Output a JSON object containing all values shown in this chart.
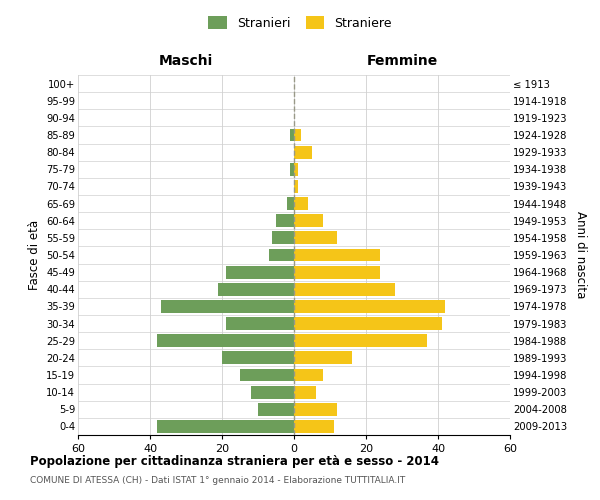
{
  "age_groups_bottom_to_top": [
    "0-4",
    "5-9",
    "10-14",
    "15-19",
    "20-24",
    "25-29",
    "30-34",
    "35-39",
    "40-44",
    "45-49",
    "50-54",
    "55-59",
    "60-64",
    "65-69",
    "70-74",
    "75-79",
    "80-84",
    "85-89",
    "90-94",
    "95-99",
    "100+"
  ],
  "birth_years_bottom_to_top": [
    "2009-2013",
    "2004-2008",
    "1999-2003",
    "1994-1998",
    "1989-1993",
    "1984-1988",
    "1979-1983",
    "1974-1978",
    "1969-1973",
    "1964-1968",
    "1959-1963",
    "1954-1958",
    "1949-1953",
    "1944-1948",
    "1939-1943",
    "1934-1938",
    "1929-1933",
    "1924-1928",
    "1919-1923",
    "1914-1918",
    "≤ 1913"
  ],
  "males_bottom_to_top": [
    38,
    10,
    12,
    15,
    20,
    38,
    19,
    37,
    21,
    19,
    7,
    6,
    5,
    2,
    0,
    1,
    0,
    1,
    0,
    0,
    0
  ],
  "females_bottom_to_top": [
    11,
    12,
    6,
    8,
    16,
    37,
    41,
    42,
    28,
    24,
    24,
    12,
    8,
    4,
    1,
    1,
    5,
    2,
    0,
    0,
    0
  ],
  "male_color": "#6d9e5a",
  "female_color": "#f5c518",
  "male_label": "Stranieri",
  "female_label": "Straniere",
  "title": "Popolazione per cittadinanza straniera per età e sesso - 2014",
  "subtitle": "COMUNE DI ATESSA (CH) - Dati ISTAT 1° gennaio 2014 - Elaborazione TUTTITALIA.IT",
  "maschi_label": "Maschi",
  "femmine_label": "Femmine",
  "ylabel_left": "Fasce di età",
  "ylabel_right": "Anni di nascita",
  "xlim": 60,
  "background_color": "#ffffff",
  "grid_color": "#d0d0d0",
  "center_line_color": "#999988",
  "bar_height": 0.75
}
